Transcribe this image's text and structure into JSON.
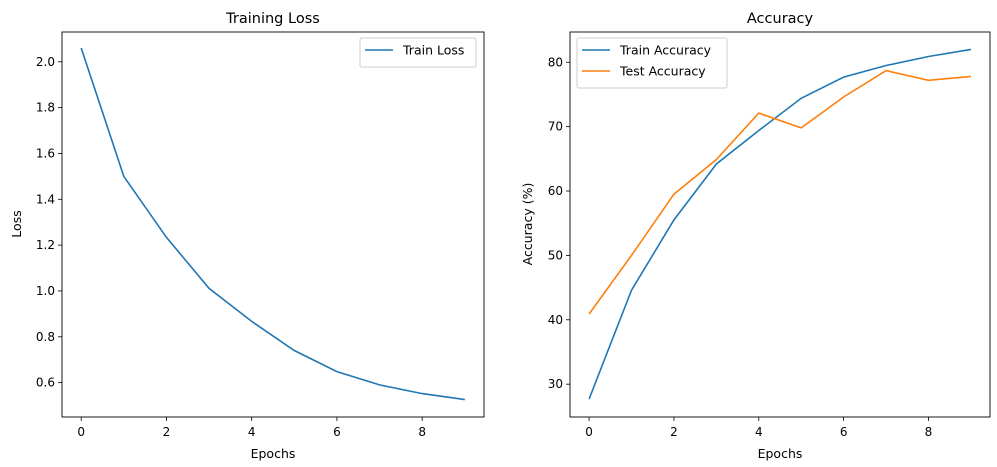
{
  "chart_data": [
    {
      "type": "line",
      "title": "Training Loss",
      "xlabel": "Epochs",
      "ylabel": "Loss",
      "x": [
        0,
        1,
        2,
        3,
        4,
        5,
        6,
        7,
        8,
        9
      ],
      "series": [
        {
          "name": "Train Loss",
          "color": "#1f77b4",
          "values": [
            2.06,
            1.5,
            1.234,
            1.011,
            0.867,
            0.74,
            0.648,
            0.59,
            0.552,
            0.526
          ]
        }
      ],
      "xlim": [
        -0.45,
        9.45
      ],
      "ylim": [
        0.45,
        2.13
      ],
      "xticks": [
        0,
        2,
        4,
        6,
        8
      ],
      "xtick_labels": [
        "0",
        "2",
        "4",
        "6",
        "8"
      ],
      "yticks": [
        0.6,
        0.8,
        1.0,
        1.2,
        1.4,
        1.6,
        1.8,
        2.0
      ],
      "ytick_labels": [
        "0.6",
        "0.8",
        "1.0",
        "1.2",
        "1.4",
        "1.6",
        "1.8",
        "2.0"
      ],
      "grid": false,
      "legend": "top-right"
    },
    {
      "type": "line",
      "title": "Accuracy",
      "xlabel": "Epochs",
      "ylabel": "Accuracy (%)",
      "x": [
        0,
        1,
        2,
        3,
        4,
        5,
        6,
        7,
        8,
        9
      ],
      "series": [
        {
          "name": "Train Accuracy",
          "color": "#1f77b4",
          "values": [
            27.7,
            44.6,
            55.5,
            64.2,
            69.4,
            74.4,
            77.7,
            79.5,
            80.9,
            82.0
          ]
        },
        {
          "name": "Test Accuracy",
          "color": "#ff7f0e",
          "values": [
            40.9,
            50.0,
            59.5,
            64.9,
            72.1,
            69.8,
            74.6,
            78.7,
            77.2,
            77.8
          ]
        }
      ],
      "xlim": [
        -0.45,
        9.45
      ],
      "ylim": [
        24.9,
        84.7
      ],
      "xticks": [
        0,
        2,
        4,
        6,
        8
      ],
      "xtick_labels": [
        "0",
        "2",
        "4",
        "6",
        "8"
      ],
      "yticks": [
        30,
        40,
        50,
        60,
        70,
        80
      ],
      "ytick_labels": [
        "30",
        "40",
        "50",
        "60",
        "70",
        "80"
      ],
      "grid": false,
      "legend": "top-left"
    }
  ]
}
